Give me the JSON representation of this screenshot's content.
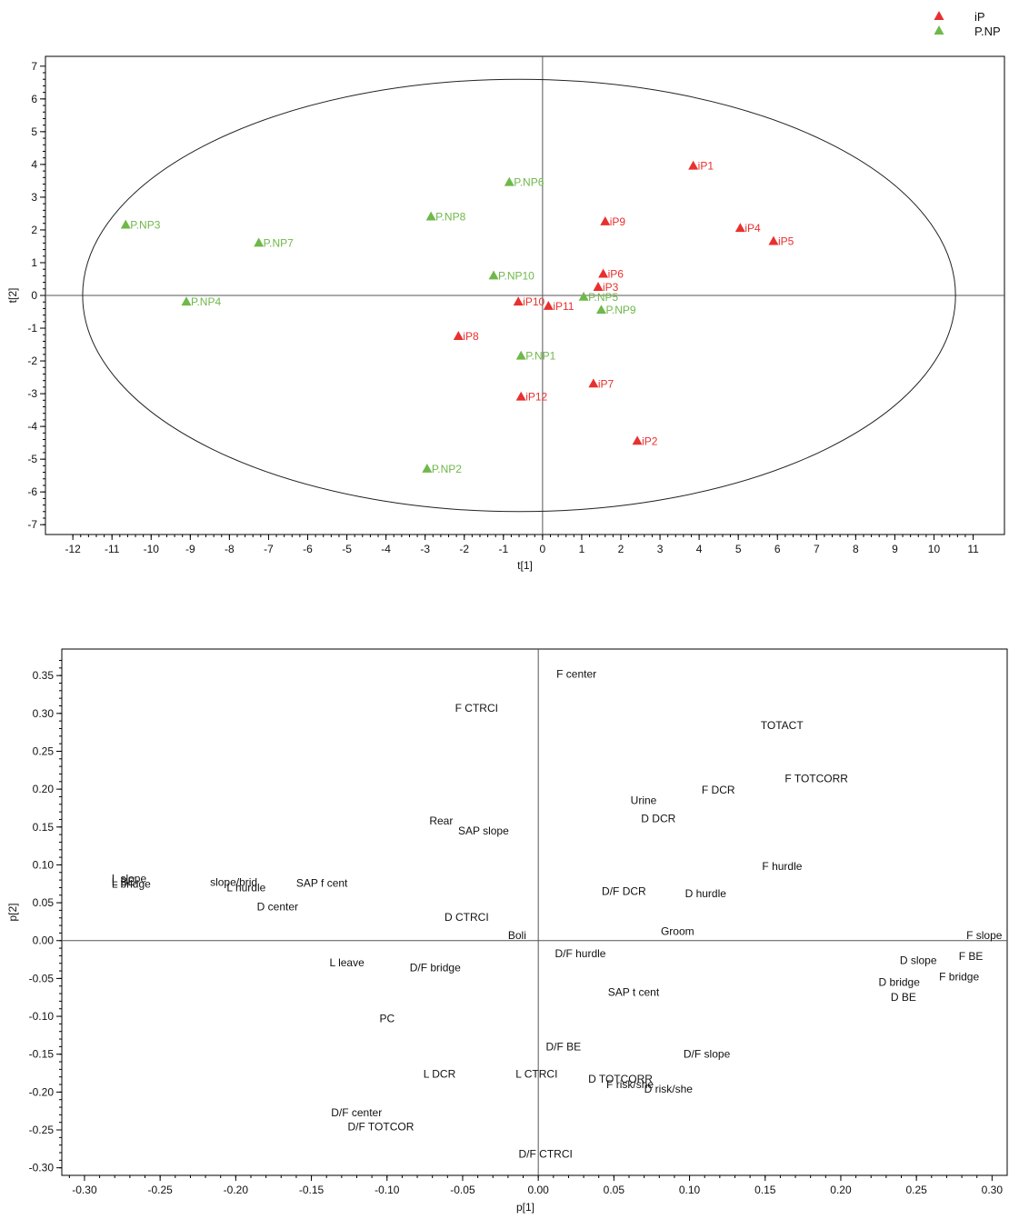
{
  "colors": {
    "iP": "#e8302e",
    "P.NP": "#6fb84a"
  },
  "chart_data": [
    {
      "type": "scatter",
      "xlabel": "t[1]",
      "ylabel": "t[2]",
      "xlim": [
        -12.7,
        11.8
      ],
      "ylim": [
        -7.3,
        7.3
      ],
      "xticks": [
        -12,
        -11,
        -10,
        -9,
        -8,
        -7,
        -6,
        -5,
        -4,
        -3,
        -2,
        -1,
        0,
        1,
        2,
        3,
        4,
        5,
        6,
        7,
        8,
        9,
        10,
        11
      ],
      "yticks": [
        -7,
        -6,
        -5,
        -4,
        -3,
        -2,
        -1,
        0,
        1,
        2,
        3,
        4,
        5,
        6,
        7
      ],
      "ellipse": {
        "cx": -0.6,
        "cy": 0,
        "rx": 11.15,
        "ry": 6.6
      },
      "legend": {
        "position": "top-right",
        "entries": [
          "iP",
          "P.NP"
        ]
      },
      "series": [
        {
          "name": "iP",
          "points": [
            {
              "label": "iP1",
              "x": 3.85,
              "y": 3.95
            },
            {
              "label": "iP2",
              "x": 2.42,
              "y": -4.45
            },
            {
              "label": "iP3",
              "x": 1.42,
              "y": 0.25
            },
            {
              "label": "iP4",
              "x": 5.05,
              "y": 2.05
            },
            {
              "label": "iP5",
              "x": 5.9,
              "y": 1.65
            },
            {
              "label": "iP6",
              "x": 1.55,
              "y": 0.65
            },
            {
              "label": "iP7",
              "x": 1.3,
              "y": -2.7
            },
            {
              "label": "iP8",
              "x": -2.15,
              "y": -1.25
            },
            {
              "label": "iP9",
              "x": 1.6,
              "y": 2.25
            },
            {
              "label": "iP10",
              "x": -0.62,
              "y": -0.2
            },
            {
              "label": "iP11",
              "x": 0.15,
              "y": -0.33
            },
            {
              "label": "iP12",
              "x": -0.55,
              "y": -3.1
            }
          ]
        },
        {
          "name": "P.NP",
          "points": [
            {
              "label": "P.NP1",
              "x": -0.55,
              "y": -1.85
            },
            {
              "label": "P.NP2",
              "x": -2.95,
              "y": -5.3
            },
            {
              "label": "P.NP3",
              "x": -10.65,
              "y": 2.15
            },
            {
              "label": "P.NP4",
              "x": -9.1,
              "y": -0.2
            },
            {
              "label": "P.NP5",
              "x": 1.05,
              "y": -0.05
            },
            {
              "label": "P.NP6",
              "x": -0.85,
              "y": 3.45
            },
            {
              "label": "P.NP7",
              "x": -7.25,
              "y": 1.6
            },
            {
              "label": "P.NP8",
              "x": -2.85,
              "y": 2.4
            },
            {
              "label": "P.NP9",
              "x": 1.5,
              "y": -0.45
            },
            {
              "label": "P.NP10",
              "x": -1.25,
              "y": 0.6
            }
          ]
        }
      ]
    },
    {
      "type": "scatter",
      "xlabel": "p[1]",
      "ylabel": "p[2]",
      "xlim": [
        -0.315,
        0.31
      ],
      "ylim": [
        -0.31,
        0.385
      ],
      "xticks": [
        -0.3,
        -0.25,
        -0.2,
        -0.15,
        -0.1,
        -0.05,
        0.0,
        0.05,
        0.1,
        0.15,
        0.2,
        0.25,
        0.3
      ],
      "xtick_labels": [
        "-0.30",
        "-0.25",
        "-0.20",
        "-0.15",
        "-0.10",
        "-0.05",
        "0.00",
        "0.05",
        "0.10",
        "0.15",
        "0.20",
        "0.25",
        "0.30"
      ],
      "yticks": [
        -0.3,
        -0.25,
        -0.2,
        -0.15,
        -0.1,
        -0.05,
        0.0,
        0.05,
        0.1,
        0.15,
        0.2,
        0.25,
        0.3,
        0.35
      ],
      "ytick_labels": [
        "-0.30",
        "-0.25",
        "-0.20",
        "-0.15",
        "-0.10",
        "-0.05",
        "0.00",
        "0.05",
        "0.10",
        "0.15",
        "0.20",
        "0.25",
        "0.30",
        "0.35"
      ],
      "points": [
        {
          "label": "F center",
          "x": 0.012,
          "y": 0.352
        },
        {
          "label": "F CTRCI",
          "x": -0.055,
          "y": 0.307
        },
        {
          "label": "TOTACT",
          "x": 0.147,
          "y": 0.284
        },
        {
          "label": "F TOTCORR",
          "x": 0.163,
          "y": 0.214
        },
        {
          "label": "F DCR",
          "x": 0.108,
          "y": 0.199
        },
        {
          "label": "Urine",
          "x": 0.061,
          "y": 0.185
        },
        {
          "label": "D DCR",
          "x": 0.068,
          "y": 0.161
        },
        {
          "label": "Rear",
          "x": -0.072,
          "y": 0.158
        },
        {
          "label": "SAP slope",
          "x": -0.053,
          "y": 0.145
        },
        {
          "label": "F hurdle",
          "x": 0.148,
          "y": 0.098
        },
        {
          "label": "L BE",
          "x": -0.282,
          "y": 0.078
        },
        {
          "label": "L slope",
          "x": -0.282,
          "y": 0.082
        },
        {
          "label": "L bridge",
          "x": -0.282,
          "y": 0.075
        },
        {
          "label": "slope/brid",
          "x": -0.217,
          "y": 0.077
        },
        {
          "label": "L hurdle",
          "x": -0.206,
          "y": 0.07
        },
        {
          "label": "SAP f cent",
          "x": -0.16,
          "y": 0.076
        },
        {
          "label": "D/F DCR",
          "x": 0.042,
          "y": 0.065
        },
        {
          "label": "D hurdle",
          "x": 0.097,
          "y": 0.062
        },
        {
          "label": "D center",
          "x": -0.186,
          "y": 0.045
        },
        {
          "label": "D CTRCI",
          "x": -0.062,
          "y": 0.031
        },
        {
          "label": "Groom",
          "x": 0.081,
          "y": 0.012
        },
        {
          "label": "Boli",
          "x": -0.02,
          "y": 0.007
        },
        {
          "label": "F slope",
          "x": 0.283,
          "y": 0.007
        },
        {
          "label": "D/F hurdle",
          "x": 0.011,
          "y": -0.017
        },
        {
          "label": "F BE",
          "x": 0.278,
          "y": -0.021
        },
        {
          "label": "D slope",
          "x": 0.239,
          "y": -0.026
        },
        {
          "label": "F bridge",
          "x": 0.265,
          "y": -0.048
        },
        {
          "label": "D bridge",
          "x": 0.225,
          "y": -0.055
        },
        {
          "label": "L leave",
          "x": -0.138,
          "y": -0.029
        },
        {
          "label": "D/F bridge",
          "x": -0.085,
          "y": -0.036
        },
        {
          "label": "SAP t cent",
          "x": 0.046,
          "y": -0.068
        },
        {
          "label": "D BE",
          "x": 0.233,
          "y": -0.075
        },
        {
          "label": "PC",
          "x": -0.105,
          "y": -0.103
        },
        {
          "label": "D/F BE",
          "x": 0.005,
          "y": -0.14
        },
        {
          "label": "D/F slope",
          "x": 0.096,
          "y": -0.15
        },
        {
          "label": "L DCR",
          "x": -0.076,
          "y": -0.176
        },
        {
          "label": "L CTRCI",
          "x": -0.015,
          "y": -0.176
        },
        {
          "label": "D TOTCORR",
          "x": 0.033,
          "y": -0.183
        },
        {
          "label": "F risk/she",
          "x": 0.045,
          "y": -0.19
        },
        {
          "label": "D risk/she",
          "x": 0.07,
          "y": -0.196
        },
        {
          "label": "D/F center",
          "x": -0.137,
          "y": -0.227
        },
        {
          "label": "D/F TOTCOR",
          "x": -0.126,
          "y": -0.246
        },
        {
          "label": "D/F CTRCI",
          "x": -0.013,
          "y": -0.282
        }
      ]
    }
  ]
}
